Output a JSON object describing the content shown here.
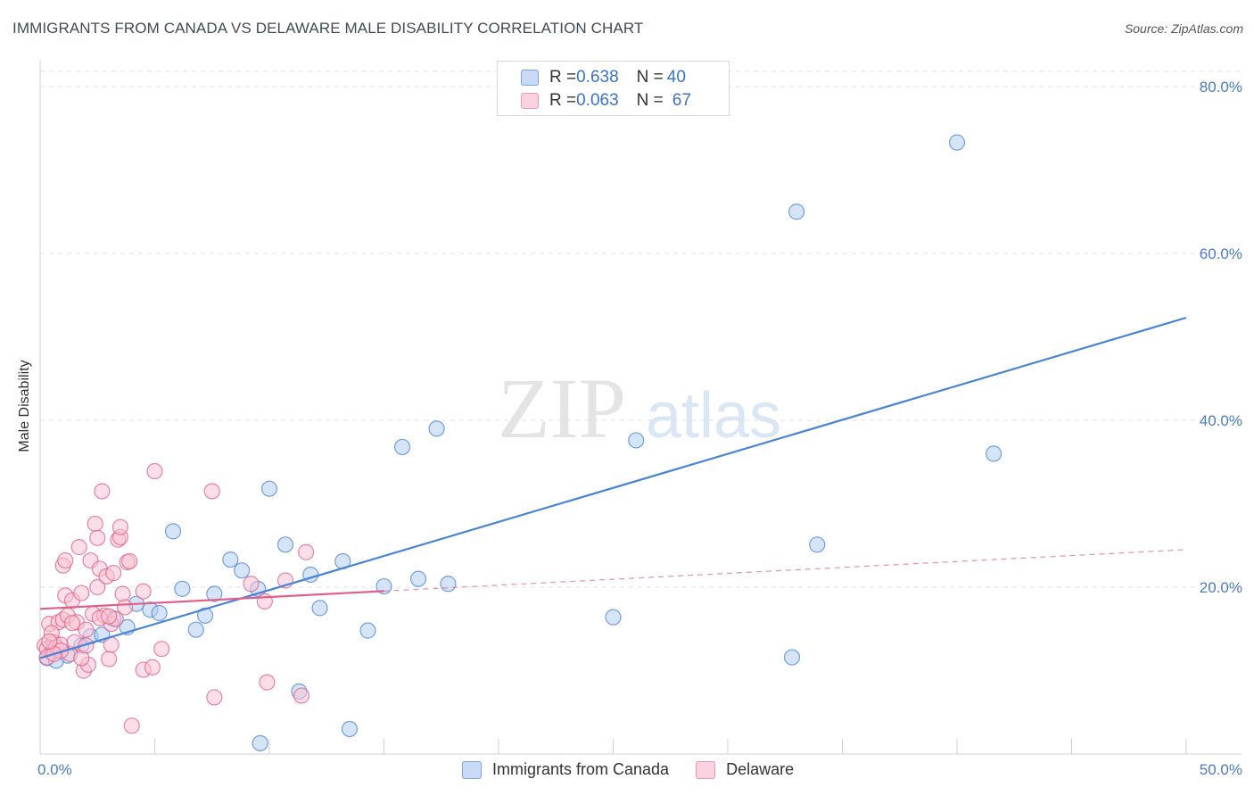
{
  "header": {
    "title": "IMMIGRANTS FROM CANADA VS DELAWARE MALE DISABILITY CORRELATION CHART",
    "source": "Source: ZipAtlas.com"
  },
  "watermark": {
    "zip": "ZIP",
    "atlas": "atlas"
  },
  "legend_top": [
    {
      "r_key": "R = ",
      "r_value": "0.638",
      "n_key": "N = ",
      "n_value": "40",
      "color": "#a9c6f0"
    },
    {
      "r_key": "R = ",
      "r_value": "0.063",
      "n_key": "N = ",
      "n_value": "67",
      "color": "#f7b7cc"
    }
  ],
  "legend_bottom": [
    {
      "label": "Immigrants from Canada",
      "color": "#a9c6f0"
    },
    {
      "label": "Delaware",
      "color": "#f7b7cc"
    }
  ],
  "chart_data": {
    "type": "scatter",
    "title": "IMMIGRANTS FROM CANADA VS DELAWARE MALE DISABILITY CORRELATION CHART",
    "xlabel": "",
    "ylabel": "Male Disability",
    "xlim": [
      0,
      50
    ],
    "ylim": [
      0,
      80
    ],
    "x_tick_labels": [
      "0.0%",
      "50.0%"
    ],
    "y_ticks": [
      20,
      40,
      60,
      80
    ],
    "y_tick_labels": [
      "20.0%",
      "40.0%",
      "60.0%",
      "80.0%"
    ],
    "grid": true,
    "legend_position": "top-center",
    "series": [
      {
        "name": "Immigrants from Canada",
        "color": "#4a84d6",
        "fill": "#b5cdf1",
        "trend": {
          "x0": 0,
          "y0": 11.5,
          "x1": 50,
          "y1": 52.3,
          "solid_until": 50
        },
        "points": [
          [
            0.3,
            11.5
          ],
          [
            0.7,
            11.2
          ],
          [
            1.2,
            11.8
          ],
          [
            1.8,
            13.0
          ],
          [
            2.2,
            14.1
          ],
          [
            2.7,
            14.3
          ],
          [
            3.2,
            16.2
          ],
          [
            3.8,
            15.2
          ],
          [
            4.2,
            18.0
          ],
          [
            4.8,
            17.3
          ],
          [
            5.2,
            16.9
          ],
          [
            5.8,
            26.7
          ],
          [
            6.2,
            19.8
          ],
          [
            6.8,
            14.9
          ],
          [
            7.2,
            16.6
          ],
          [
            7.6,
            19.2
          ],
          [
            8.3,
            23.3
          ],
          [
            8.8,
            22.0
          ],
          [
            9.5,
            19.8
          ],
          [
            10.0,
            31.8
          ],
          [
            10.7,
            25.1
          ],
          [
            11.3,
            7.5
          ],
          [
            11.8,
            21.5
          ],
          [
            12.2,
            17.5
          ],
          [
            13.2,
            23.1
          ],
          [
            13.5,
            3.0
          ],
          [
            14.3,
            14.8
          ],
          [
            15.0,
            20.1
          ],
          [
            15.8,
            36.8
          ],
          [
            16.5,
            21.0
          ],
          [
            17.3,
            39.0
          ],
          [
            17.8,
            20.4
          ],
          [
            9.6,
            1.3
          ],
          [
            25.0,
            16.4
          ],
          [
            26.0,
            37.6
          ],
          [
            32.8,
            11.6
          ],
          [
            33.0,
            65.0
          ],
          [
            33.9,
            25.1
          ],
          [
            40.0,
            73.3
          ],
          [
            41.6,
            36.0
          ]
        ]
      },
      {
        "name": "Delaware",
        "color": "#e0608a",
        "fill": "#f7c3d4",
        "trend": {
          "x0": 0,
          "y0": 17.4,
          "x1": 50,
          "y1": 24.5,
          "solid_until": 15
        },
        "points": [
          [
            0.2,
            13.0
          ],
          [
            0.3,
            12.6
          ],
          [
            0.4,
            15.6
          ],
          [
            0.5,
            12.2
          ],
          [
            0.6,
            13.4
          ],
          [
            0.7,
            12.8
          ],
          [
            0.8,
            15.8
          ],
          [
            0.9,
            13.1
          ],
          [
            1.0,
            16.1
          ],
          [
            1.0,
            22.6
          ],
          [
            1.1,
            19.0
          ],
          [
            1.1,
            23.2
          ],
          [
            1.2,
            16.6
          ],
          [
            1.3,
            12.0
          ],
          [
            1.4,
            18.4
          ],
          [
            1.5,
            13.4
          ],
          [
            1.6,
            15.8
          ],
          [
            1.7,
            24.8
          ],
          [
            1.8,
            19.3
          ],
          [
            1.9,
            10.0
          ],
          [
            2.0,
            14.9
          ],
          [
            2.1,
            10.7
          ],
          [
            2.2,
            23.2
          ],
          [
            2.3,
            16.8
          ],
          [
            2.4,
            27.6
          ],
          [
            2.5,
            20.0
          ],
          [
            2.5,
            25.9
          ],
          [
            2.6,
            22.2
          ],
          [
            2.7,
            31.5
          ],
          [
            2.8,
            16.6
          ],
          [
            2.9,
            21.3
          ],
          [
            3.0,
            11.4
          ],
          [
            3.1,
            15.6
          ],
          [
            3.1,
            13.1
          ],
          [
            3.2,
            21.7
          ],
          [
            3.3,
            16.2
          ],
          [
            3.4,
            25.7
          ],
          [
            3.5,
            26.0
          ],
          [
            3.5,
            27.2
          ],
          [
            3.6,
            19.2
          ],
          [
            3.7,
            17.6
          ],
          [
            3.8,
            23.0
          ],
          [
            3.9,
            23.1
          ],
          [
            4.0,
            3.4
          ],
          [
            4.5,
            10.1
          ],
          [
            4.5,
            19.5
          ],
          [
            4.9,
            10.4
          ],
          [
            5.0,
            33.9
          ],
          [
            5.3,
            12.6
          ],
          [
            7.6,
            6.8
          ],
          [
            7.5,
            31.5
          ],
          [
            9.2,
            20.4
          ],
          [
            9.8,
            18.3
          ],
          [
            9.9,
            8.6
          ],
          [
            10.7,
            20.8
          ],
          [
            11.4,
            7.0
          ],
          [
            11.6,
            24.2
          ],
          [
            0.3,
            11.6
          ],
          [
            0.5,
            14.5
          ],
          [
            1.8,
            11.5
          ],
          [
            0.9,
            12.4
          ],
          [
            2.6,
            16.3
          ],
          [
            1.4,
            15.7
          ],
          [
            0.6,
            12.0
          ],
          [
            2.0,
            13.0
          ],
          [
            3.0,
            16.5
          ],
          [
            0.4,
            13.5
          ]
        ]
      }
    ]
  }
}
